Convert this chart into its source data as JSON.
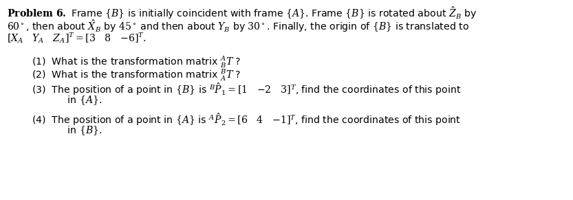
{
  "figsize": [
    8.33,
    2.91
  ],
  "dpi": 100,
  "background_color": "#ffffff",
  "font_size": 10.2,
  "line1": "$\\mathbf{Problem\\ 6.}$ Frame $\\{B\\}$ is initially coincident with frame $\\{A\\}$. Frame $\\{B\\}$ is rotated about $\\hat{Z}_B$ by",
  "line2": "$60^\\circ$, then about $\\hat{X}_B$ by $45^\\circ$ and then about $Y_B$ by $30^\\circ$. Finally, the origin of $\\{B\\}$ is translated to",
  "line3": "$[X_A \\quad Y_A \\quad Z_A]^T = [3 \\quad 8 \\quad {-6}]^T.$",
  "line4": "(1)  What is the transformation matrix ${}^A_BT$ ?",
  "line5": "(2)  What is the transformation matrix ${}^B_AT$ ?",
  "line6": "(3)  The position of a point in $\\{B\\}$ is ${}^B\\hat{P}_1 = [1 \\quad {-2} \\quad 3]^T$, find the coordinates of this point",
  "line6b": "      in $\\{A\\}$.",
  "line7": "(4)  The position of a point in $\\{A\\}$ is ${}^A\\hat{P}_2 = [6 \\quad 4 \\quad {-1}]^T$, find the coordinates of this point",
  "line7b": "      in $\\{B\\}$.",
  "indent_main": 0.012,
  "indent_items": 0.055,
  "indent_cont": 0.085
}
